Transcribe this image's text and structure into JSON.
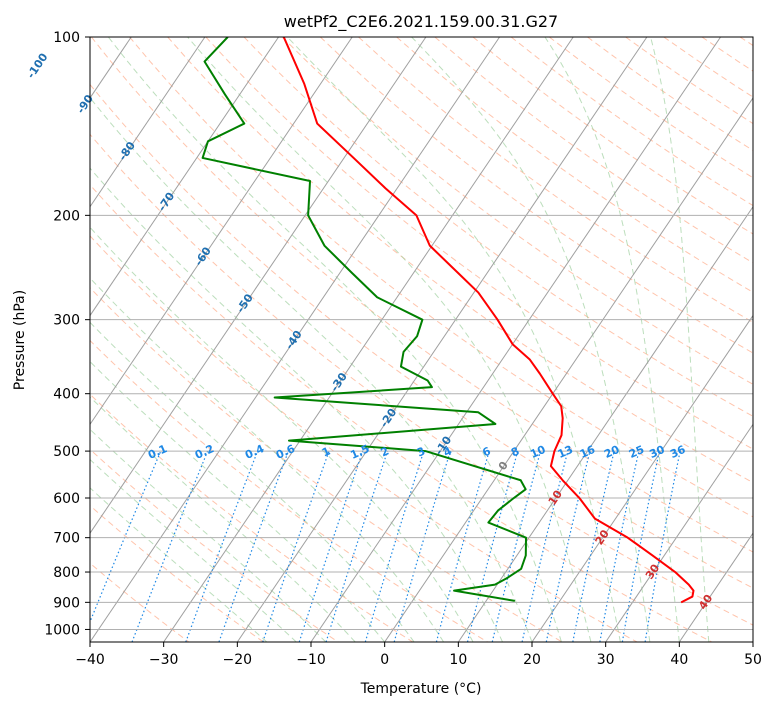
{
  "chart_data": {
    "type": "line",
    "subtype": "skew-t log-p",
    "title": "wetPf2_C2E6.2021.159.00.31.G27",
    "xlabel": "Temperature (°C)",
    "ylabel": "Pressure (hPa)",
    "xlim": [
      -40,
      50
    ],
    "ylim": [
      1050,
      100
    ],
    "y_scale": "log",
    "x_ticks": [
      -40,
      -30,
      -20,
      -10,
      0,
      10,
      20,
      30,
      40,
      50
    ],
    "y_ticks": [
      100,
      200,
      300,
      400,
      500,
      600,
      700,
      800,
      900,
      1000
    ],
    "grid": true,
    "colors": {
      "temperature": "#ff0000",
      "dewpoint": "#008000",
      "isotherm": "#a0a0a0",
      "dry_adiabat": "#ffb090",
      "moist_adiabat": "#a0d0a0",
      "mixing_ratio": "#1e88e5",
      "freezing_level_label": "#808080",
      "isotherm_label": "#1f6fb0",
      "warm_label": "#d03030"
    },
    "series": [
      {
        "name": "",
        "variable": "temperature",
        "points": [
          [
            36.6,
            900
          ],
          [
            37.6,
            880
          ],
          [
            37.2,
            860
          ],
          [
            36.0,
            840
          ],
          [
            33.0,
            800
          ],
          [
            28.4,
            750
          ],
          [
            23.4,
            700
          ],
          [
            17.2,
            650
          ],
          [
            13.2,
            600
          ],
          [
            9.3,
            560
          ],
          [
            6.4,
            530
          ],
          [
            5.5,
            500
          ],
          [
            5.0,
            470
          ],
          [
            3.6,
            440
          ],
          [
            2.3,
            420
          ],
          [
            0.0,
            400
          ],
          [
            -3.6,
            370
          ],
          [
            -6.3,
            350
          ],
          [
            -10.0,
            330
          ],
          [
            -14.3,
            300
          ],
          [
            -19.4,
            270
          ],
          [
            -24.0,
            250
          ],
          [
            -30.3,
            225
          ],
          [
            -34.9,
            200
          ],
          [
            -41.6,
            180
          ],
          [
            -48.7,
            160
          ],
          [
            -56.8,
            140
          ],
          [
            -62.2,
            120
          ],
          [
            -69.3,
            100
          ]
        ]
      },
      {
        "name": "",
        "variable": "dewpoint",
        "points": [
          [
            13.9,
            895
          ],
          [
            4.7,
            860
          ],
          [
            9.7,
            840
          ],
          [
            10.7,
            820
          ],
          [
            11.8,
            790
          ],
          [
            11.2,
            750
          ],
          [
            9.6,
            700
          ],
          [
            3.1,
            660
          ],
          [
            3.3,
            630
          ],
          [
            4.3,
            600
          ],
          [
            5.1,
            580
          ],
          [
            3.6,
            560
          ],
          [
            -12.0,
            500
          ],
          [
            -31.5,
            480
          ],
          [
            -5.0,
            450
          ],
          [
            -8.4,
            430
          ],
          [
            -37.4,
            406
          ],
          [
            -17.0,
            390
          ],
          [
            -18.2,
            380
          ],
          [
            -23.1,
            360
          ],
          [
            -24.1,
            340
          ],
          [
            -23.7,
            320
          ],
          [
            -24.5,
            300
          ],
          [
            -32.7,
            275
          ],
          [
            -38.4,
            250
          ],
          [
            -44.6,
            225
          ],
          [
            -49.6,
            200
          ],
          [
            -52.5,
            175
          ],
          [
            -69.2,
            160
          ],
          [
            -70.0,
            150
          ],
          [
            -66.7,
            140
          ],
          [
            -72.0,
            125
          ],
          [
            -77.8,
            110
          ],
          [
            -76.9,
            100
          ]
        ]
      }
    ],
    "isotherm_labels": [
      "-100",
      "-90",
      "-80",
      "-70",
      "-60",
      "-50",
      "-40",
      "-30",
      "-20",
      "-10",
      "0",
      "10",
      "20",
      "30",
      "40"
    ],
    "mixing_ratio_labels": [
      "0.1",
      "0.2",
      "0.4",
      "0.6",
      "1",
      "1.5",
      "2",
      "3",
      "4",
      "6",
      "8",
      "10",
      "13",
      "16",
      "20",
      "25",
      "30",
      "36"
    ]
  }
}
